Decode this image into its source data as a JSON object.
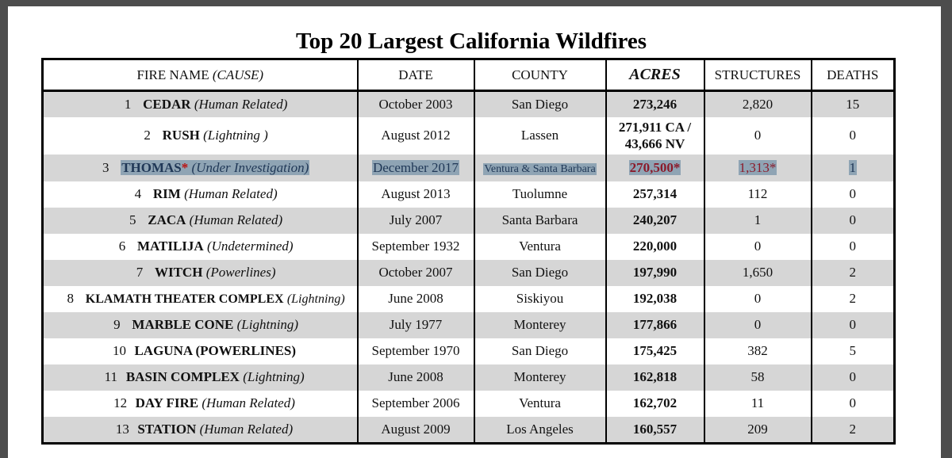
{
  "title": "Top 20 Largest California Wildfires",
  "columns": {
    "fire_name": "FIRE NAME",
    "cause": "(CAUSE)",
    "date": "DATE",
    "county": "COUNTY",
    "acres": "ACRES",
    "structures": "STRUCTURES",
    "deaths": "DEATHS"
  },
  "rows": [
    {
      "rank": "1",
      "name": "CEDAR",
      "cause": "(Human Related)",
      "date": "October 2003",
      "county": "San Diego",
      "acres": "273,246",
      "structures": "2,820",
      "deaths": "15"
    },
    {
      "rank": "2",
      "name": "RUSH",
      "cause": "(Lightning )",
      "date": "August 2012",
      "county": "Lassen",
      "acres": "271,911 CA /",
      "acres2": "43,666 NV",
      "structures": "0",
      "deaths": "0"
    },
    {
      "rank": "3",
      "name": "THOMAS",
      "star": "*",
      "cause": "(Under Investigation)",
      "date": "December 2017",
      "county": "Ventura & Santa Barbara",
      "acres": "270,500*",
      "structures": "1,313*",
      "deaths": "1"
    },
    {
      "rank": "4",
      "name": "RIM",
      "cause": "(Human Related)",
      "date": "August 2013",
      "county": "Tuolumne",
      "acres": "257,314",
      "structures": "112",
      "deaths": "0"
    },
    {
      "rank": "5",
      "name": "ZACA",
      "cause": "(Human Related)",
      "date": "July 2007",
      "county": "Santa Barbara",
      "acres": "240,207",
      "structures": "1",
      "deaths": "0"
    },
    {
      "rank": "6",
      "name": "MATILIJA",
      "cause": "(Undetermined)",
      "date": "September 1932",
      "county": "Ventura",
      "acres": "220,000",
      "structures": "0",
      "deaths": "0"
    },
    {
      "rank": "7",
      "name": "WITCH",
      "cause": "(Powerlines)",
      "date": "October 2007",
      "county": "San Diego",
      "acres": "197,990",
      "structures": "1,650",
      "deaths": "2"
    },
    {
      "rank": "8",
      "name": "KLAMATH THEATER COMPLEX",
      "cause": "(Lightning)",
      "date": "June 2008",
      "county": "Siskiyou",
      "acres": "192,038",
      "structures": "0",
      "deaths": "2"
    },
    {
      "rank": "9",
      "name": "MARBLE CONE",
      "cause": "(Lightning)",
      "date": "July 1977",
      "county": "Monterey",
      "acres": "177,866",
      "structures": "0",
      "deaths": "0"
    },
    {
      "rank": "10",
      "name": "LAGUNA (POWERLINES)",
      "cause": "",
      "date": "September 1970",
      "county": "San Diego",
      "acres": "175,425",
      "structures": "382",
      "deaths": "5"
    },
    {
      "rank": "11",
      "name": "BASIN COMPLEX",
      "cause": "(Lightning)",
      "date": "June 2008",
      "county": "Monterey",
      "acres": "162,818",
      "structures": "58",
      "deaths": "0"
    },
    {
      "rank": "12",
      "name": "DAY FIRE",
      "cause": "(Human Related)",
      "date": "September 2006",
      "county": "Ventura",
      "acres": "162,702",
      "structures": "11",
      "deaths": "0"
    },
    {
      "rank": "13",
      "name": "STATION",
      "cause": "(Human Related)",
      "date": "August 2009",
      "county": "Los Angeles",
      "acres": "160,557",
      "structures": "209",
      "deaths": "2"
    }
  ]
}
